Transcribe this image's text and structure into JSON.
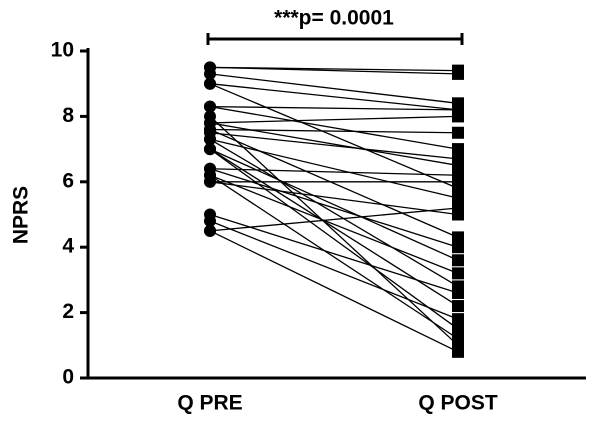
{
  "chart_data": {
    "type": "paired",
    "y_label": "NPRS",
    "annotation": "***p= 0.0001",
    "categories": [
      "Q PRE",
      "Q POST"
    ],
    "color": "#000000",
    "series": [
      {
        "values": [
          9.5,
          9.4
        ]
      },
      {
        "values": [
          9.5,
          9.3
        ]
      },
      {
        "values": [
          9.3,
          8.4
        ]
      },
      {
        "values": [
          9.0,
          8.2
        ]
      },
      {
        "values": [
          9.0,
          5.8
        ]
      },
      {
        "values": [
          8.3,
          8.2
        ]
      },
      {
        "values": [
          8.3,
          7.0
        ]
      },
      {
        "values": [
          7.8,
          8.0
        ]
      },
      {
        "values": [
          7.8,
          6.5
        ]
      },
      {
        "values": [
          7.6,
          7.5
        ]
      },
      {
        "values": [
          7.6,
          4.3
        ]
      },
      {
        "values": [
          7.3,
          5.5
        ]
      },
      {
        "values": [
          7.3,
          2.8
        ]
      },
      {
        "values": [
          7.0,
          3.6
        ]
      },
      {
        "values": [
          7.0,
          2.2
        ]
      },
      {
        "values": [
          7.0,
          1.5
        ]
      },
      {
        "values": [
          6.4,
          6.2
        ]
      },
      {
        "values": [
          6.4,
          4.0
        ]
      },
      {
        "values": [
          6.2,
          3.2
        ]
      },
      {
        "values": [
          6.2,
          1.2
        ]
      },
      {
        "values": [
          6.0,
          6.0
        ]
      },
      {
        "values": [
          6.0,
          5.0
        ]
      },
      {
        "values": [
          5.0,
          2.6
        ]
      },
      {
        "values": [
          4.8,
          1.8
        ]
      },
      {
        "values": [
          4.5,
          5.2
        ]
      },
      {
        "values": [
          4.5,
          0.8
        ]
      },
      {
        "values": [
          7.5,
          6.7
        ]
      },
      {
        "values": [
          8.0,
          1.0
        ]
      }
    ],
    "ylim": [
      0,
      10
    ],
    "yticks": [
      0,
      2,
      4,
      6,
      8,
      10
    ]
  }
}
